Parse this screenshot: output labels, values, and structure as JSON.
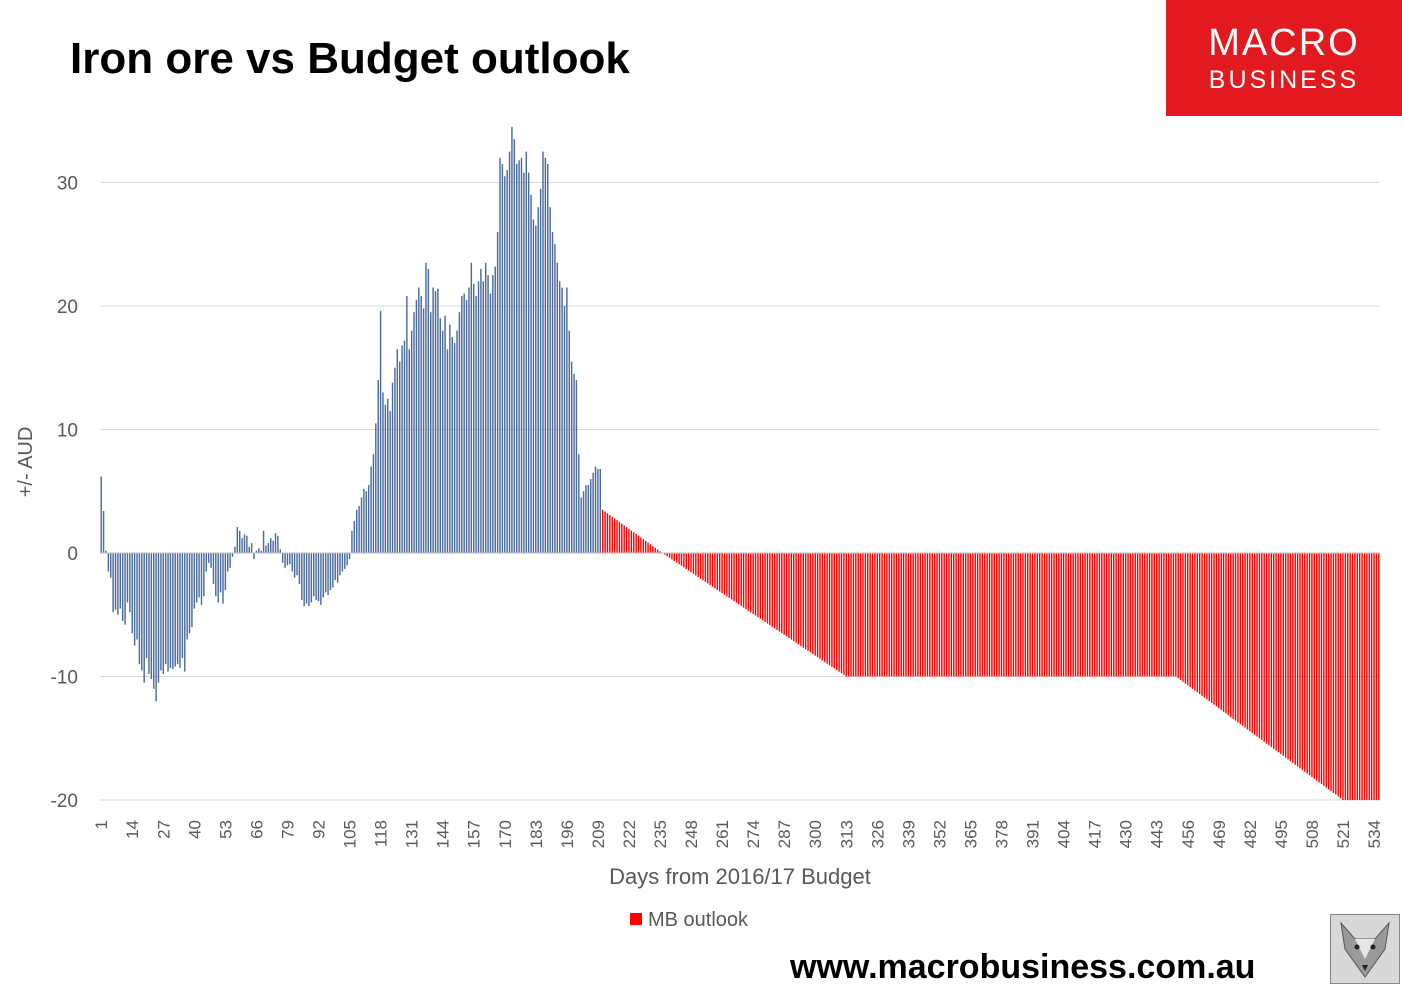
{
  "chart_data": {
    "type": "bar",
    "title": "Iron ore vs Budget outlook",
    "xlabel": "Days from 2016/17 Budget",
    "ylabel": "+/- AUD",
    "ylim": [
      -20,
      35
    ],
    "yticks": [
      30,
      20,
      10,
      0,
      -10,
      -20
    ],
    "xticks": [
      1,
      14,
      27,
      40,
      53,
      66,
      79,
      92,
      105,
      118,
      131,
      144,
      157,
      170,
      183,
      196,
      209,
      222,
      235,
      248,
      261,
      274,
      287,
      300,
      313,
      326,
      339,
      352,
      365,
      378,
      391,
      404,
      417,
      430,
      443,
      456,
      469,
      482,
      495,
      508,
      521,
      534
    ],
    "xrange": [
      1,
      536
    ],
    "grid": true,
    "legend_position": "bottom",
    "actual_anchors": [
      [
        1,
        6.2
      ],
      [
        2,
        3.4
      ],
      [
        3,
        0.2
      ],
      [
        4,
        -1.5
      ],
      [
        5,
        -2.0
      ],
      [
        6,
        -4.8
      ],
      [
        7,
        -4.6
      ],
      [
        8,
        -5.0
      ],
      [
        9,
        -4.5
      ],
      [
        10,
        -5.5
      ],
      [
        11,
        -5.8
      ],
      [
        12,
        -4.0
      ],
      [
        13,
        -4.8
      ],
      [
        14,
        -6.5
      ],
      [
        15,
        -7.5
      ],
      [
        16,
        -7.0
      ],
      [
        17,
        -9.0
      ],
      [
        18,
        -9.5
      ],
      [
        19,
        -10.5
      ],
      [
        20,
        -8.5
      ],
      [
        21,
        -9.8
      ],
      [
        22,
        -10.2
      ],
      [
        23,
        -11.0
      ],
      [
        24,
        -12.0
      ],
      [
        25,
        -10.5
      ],
      [
        26,
        -9.5
      ],
      [
        27,
        -9.8
      ],
      [
        28,
        -9.0
      ],
      [
        29,
        -9.6
      ],
      [
        30,
        -9.3
      ],
      [
        31,
        -9.4
      ],
      [
        32,
        -9.2
      ],
      [
        33,
        -9.0
      ],
      [
        34,
        -9.3
      ],
      [
        35,
        -8.5
      ],
      [
        36,
        -9.6
      ],
      [
        37,
        -7.0
      ],
      [
        38,
        -6.5
      ],
      [
        39,
        -6.0
      ],
      [
        40,
        -4.5
      ],
      [
        41,
        -4.0
      ],
      [
        42,
        -3.6
      ],
      [
        43,
        -4.2
      ],
      [
        44,
        -3.5
      ],
      [
        45,
        -1.5
      ],
      [
        46,
        -0.8
      ],
      [
        47,
        -1.2
      ],
      [
        48,
        -2.5
      ],
      [
        49,
        -3.5
      ],
      [
        50,
        -4.0
      ],
      [
        51,
        -3.2
      ],
      [
        52,
        -4.1
      ],
      [
        53,
        -3.0
      ],
      [
        54,
        -1.5
      ],
      [
        55,
        -1.2
      ],
      [
        56,
        -0.3
      ],
      [
        57,
        0.5
      ],
      [
        58,
        2.1
      ],
      [
        59,
        1.8
      ],
      [
        60,
        1.2
      ],
      [
        61,
        1.5
      ],
      [
        62,
        1.4
      ],
      [
        63,
        0.5
      ],
      [
        64,
        0.8
      ],
      [
        65,
        -0.5
      ],
      [
        66,
        0.2
      ],
      [
        67,
        0.4
      ],
      [
        68,
        0.2
      ],
      [
        69,
        1.8
      ],
      [
        70,
        0.6
      ],
      [
        71,
        0.8
      ],
      [
        72,
        1.2
      ],
      [
        73,
        1.0
      ],
      [
        74,
        1.6
      ],
      [
        75,
        1.4
      ],
      [
        76,
        0.3
      ],
      [
        77,
        -0.8
      ],
      [
        78,
        -1.2
      ],
      [
        79,
        -1.0
      ],
      [
        80,
        -0.9
      ],
      [
        81,
        -1.5
      ],
      [
        82,
        -2.0
      ],
      [
        83,
        -1.8
      ],
      [
        84,
        -2.5
      ],
      [
        85,
        -3.8
      ],
      [
        86,
        -4.3
      ],
      [
        87,
        -4.1
      ],
      [
        88,
        -4.3
      ],
      [
        89,
        -4.0
      ],
      [
        90,
        -3.5
      ],
      [
        91,
        -3.8
      ],
      [
        92,
        -3.9
      ],
      [
        93,
        -4.2
      ],
      [
        94,
        -3.6
      ],
      [
        95,
        -3.2
      ],
      [
        96,
        -3.4
      ],
      [
        97,
        -3.0
      ],
      [
        98,
        -2.8
      ],
      [
        99,
        -2.2
      ],
      [
        100,
        -2.4
      ],
      [
        101,
        -1.8
      ],
      [
        102,
        -1.5
      ],
      [
        103,
        -1.3
      ],
      [
        104,
        -1.0
      ],
      [
        105,
        -0.5
      ],
      [
        106,
        1.8
      ],
      [
        107,
        2.6
      ],
      [
        108,
        3.5
      ],
      [
        109,
        3.8
      ],
      [
        110,
        4.5
      ],
      [
        111,
        5.2
      ],
      [
        112,
        5.0
      ],
      [
        113,
        5.5
      ],
      [
        114,
        7.0
      ],
      [
        115,
        8.0
      ],
      [
        116,
        10.5
      ],
      [
        117,
        14.0
      ],
      [
        118,
        19.6
      ],
      [
        119,
        13.0
      ],
      [
        120,
        12.0
      ],
      [
        121,
        12.5
      ],
      [
        122,
        11.5
      ],
      [
        123,
        13.8
      ],
      [
        124,
        15.0
      ],
      [
        125,
        16.5
      ],
      [
        126,
        15.5
      ],
      [
        127,
        16.8
      ],
      [
        128,
        17.2
      ],
      [
        129,
        20.8
      ],
      [
        130,
        16.5
      ],
      [
        131,
        18.0
      ],
      [
        132,
        19.5
      ],
      [
        133,
        20.5
      ],
      [
        134,
        21.5
      ],
      [
        135,
        20.8
      ],
      [
        136,
        19.8
      ],
      [
        137,
        23.5
      ],
      [
        138,
        23.0
      ],
      [
        139,
        19.5
      ],
      [
        140,
        21.5
      ],
      [
        141,
        21.2
      ],
      [
        142,
        21.4
      ],
      [
        143,
        19.0
      ],
      [
        144,
        18.0
      ],
      [
        145,
        19.2
      ],
      [
        146,
        16.5
      ],
      [
        147,
        18.5
      ],
      [
        148,
        17.5
      ],
      [
        149,
        17.0
      ],
      [
        150,
        18.0
      ],
      [
        151,
        19.5
      ],
      [
        152,
        20.8
      ],
      [
        153,
        21.0
      ],
      [
        154,
        20.5
      ],
      [
        155,
        21.5
      ],
      [
        156,
        23.5
      ],
      [
        157,
        21.8
      ],
      [
        158,
        20.8
      ],
      [
        159,
        22.0
      ],
      [
        160,
        23.0
      ],
      [
        161,
        22.0
      ],
      [
        162,
        23.5
      ],
      [
        163,
        22.5
      ],
      [
        164,
        21.0
      ],
      [
        165,
        22.5
      ],
      [
        166,
        23.2
      ],
      [
        167,
        26.0
      ],
      [
        168,
        32.0
      ],
      [
        169,
        31.5
      ],
      [
        170,
        30.5
      ],
      [
        171,
        31.0
      ],
      [
        172,
        32.5
      ],
      [
        173,
        34.5
      ],
      [
        174,
        33.5
      ],
      [
        175,
        31.5
      ],
      [
        176,
        31.8
      ],
      [
        177,
        32.0
      ],
      [
        178,
        30.8
      ],
      [
        179,
        32.5
      ],
      [
        180,
        30.8
      ],
      [
        181,
        29.0
      ],
      [
        182,
        27.0
      ],
      [
        183,
        26.5
      ],
      [
        184,
        28.0
      ],
      [
        185,
        29.5
      ],
      [
        186,
        32.5
      ],
      [
        187,
        32.0
      ],
      [
        188,
        31.5
      ],
      [
        189,
        28.0
      ],
      [
        190,
        26.0
      ],
      [
        191,
        25.0
      ],
      [
        192,
        23.5
      ],
      [
        193,
        22.0
      ],
      [
        194,
        21.5
      ],
      [
        195,
        20.0
      ],
      [
        196,
        21.5
      ],
      [
        197,
        18.0
      ],
      [
        198,
        15.5
      ],
      [
        199,
        14.5
      ],
      [
        200,
        14.0
      ],
      [
        201,
        8.0
      ],
      [
        202,
        4.5
      ],
      [
        203,
        5.0
      ],
      [
        204,
        5.5
      ],
      [
        205,
        5.5
      ],
      [
        206,
        6.0
      ],
      [
        207,
        6.5
      ],
      [
        208,
        7.0
      ],
      [
        209,
        6.8
      ],
      [
        210,
        6.8
      ]
    ],
    "outlook_anchors": [
      [
        211,
        3.5
      ],
      [
        236,
        0
      ],
      [
        313,
        -10
      ],
      [
        451,
        -10
      ],
      [
        521,
        -20
      ],
      [
        536,
        -20
      ]
    ],
    "series": [
      {
        "name": "",
        "color": "#4a6a9c",
        "x_range": [
          1,
          210
        ]
      },
      {
        "name": "MB outlook",
        "color": "#ff0000",
        "x_range": [
          211,
          536
        ]
      }
    ]
  },
  "legend_label": "MB outlook",
  "brand": {
    "line1": "MACRO",
    "line2": "BUSINESS",
    "color": "#e2191f"
  },
  "footer": {
    "website": "www.macrobusiness.com.au"
  },
  "mascot": "fox-icon"
}
